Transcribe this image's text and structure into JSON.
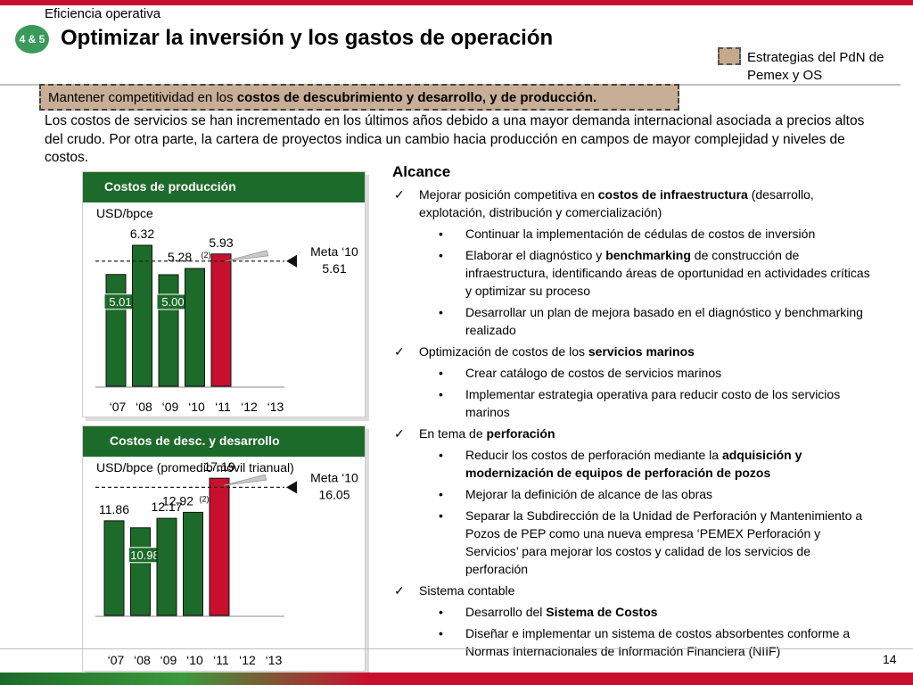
{
  "header": {
    "section": "Eficiencia operativa",
    "badge": "4 & 5",
    "title": "Optimizar la  inversión y los gastos de operación",
    "legend": "Estrategias del PdN de Pemex y OS"
  },
  "banner": {
    "pre": "Mantener competitividad en los ",
    "bold": "costos de descubrimiento y desarrollo, y de producción."
  },
  "intro": "Los costos de servicios se han incrementado en los últimos años debido a una mayor demanda internacional asociada a precios altos del crudo. Por otra parte, la cartera de proyectos indica un cambio hacia producción en campos de mayor complejidad y niveles de costos.",
  "chart_data": [
    {
      "type": "bar",
      "title": "Costos de producción",
      "ylabel": "USD/bpce",
      "categories": [
        "'07",
        "'08",
        "'09",
        "'10",
        "'11",
        "'12",
        "'13"
      ],
      "values": [
        5.01,
        6.32,
        5.0,
        5.28,
        5.93,
        null,
        null
      ],
      "labels": [
        "5.01",
        "6.32",
        "5.00",
        "5.28",
        "5.93"
      ],
      "note": "(2)",
      "highlight_index": 4,
      "target": {
        "label": "Meta ‘10",
        "value": 5.61,
        "value_label": "5.61"
      },
      "colors": {
        "bar": "#1d6b2a",
        "highlight": "#c8102e"
      }
    },
    {
      "type": "bar",
      "title": "Costos de desc. y desarrollo",
      "ylabel": "USD/bpce (promedio móvil trianual)",
      "categories": [
        "'07",
        "'08",
        "'09",
        "'10",
        "'11",
        "'12",
        "'13"
      ],
      "values": [
        11.86,
        10.98,
        12.17,
        12.92,
        17.19,
        null,
        null
      ],
      "labels": [
        "11.86",
        "10.98",
        "12.17",
        "12.92",
        "17.19"
      ],
      "note": "(2)",
      "highlight_index": 4,
      "target": {
        "label": "Meta ‘10",
        "value": 16.05,
        "value_label": "16.05"
      },
      "colors": {
        "bar": "#1d6b2a",
        "highlight": "#c8102e"
      }
    }
  ],
  "scope": {
    "title": "Alcance",
    "items": [
      {
        "type": "check",
        "segs": [
          {
            "t": "Mejorar posición competitiva en ",
            "b": false
          },
          {
            "t": "costos de infraestructura",
            "b": true
          },
          {
            "t": " (desarrollo, explotación, distribución y comercialización)",
            "b": false
          }
        ]
      },
      {
        "type": "bullet",
        "segs": [
          {
            "t": "Continuar la implementación de cédulas de costos de inversión",
            "b": false
          }
        ]
      },
      {
        "type": "bullet",
        "segs": [
          {
            "t": "Elaborar el diagnóstico y ",
            "b": false
          },
          {
            "t": "benchmarking",
            "b": true
          },
          {
            "t": " de construcción de infraestructura, identificando áreas de oportunidad en actividades críticas y optimizar su proceso",
            "b": false
          }
        ]
      },
      {
        "type": "bullet",
        "segs": [
          {
            "t": "Desarrollar un plan de mejora basado en el diagnóstico y benchmarking realizado",
            "b": false
          }
        ]
      },
      {
        "type": "check",
        "segs": [
          {
            "t": "Optimización de costos de los ",
            "b": false
          },
          {
            "t": "servicios marinos",
            "b": true
          }
        ]
      },
      {
        "type": "bullet",
        "segs": [
          {
            "t": "Crear catálogo de costos de servicios marinos",
            "b": false
          }
        ]
      },
      {
        "type": "bullet",
        "segs": [
          {
            "t": "Implementar estrategia operativa para reducir costo de los servicios marinos",
            "b": false
          }
        ]
      },
      {
        "type": "check",
        "segs": [
          {
            "t": "En tema de ",
            "b": false
          },
          {
            "t": "perforación",
            "b": true
          }
        ]
      },
      {
        "type": "bullet",
        "segs": [
          {
            "t": "Reducir los costos de perforación mediante la ",
            "b": false
          },
          {
            "t": "adquisición y modernización de equipos de perforación de pozos",
            "b": true
          }
        ]
      },
      {
        "type": "bullet",
        "segs": [
          {
            "t": "Mejorar la definición de alcance de las obras",
            "b": false
          }
        ]
      },
      {
        "type": "bullet",
        "segs": [
          {
            "t": "Separar la Subdirección de la Unidad de Perforación y Mantenimiento a Pozos de PEP como una nueva empresa ‘PEMEX Perforación y Servicios’ para mejorar los costos y calidad de los servicios de perforación",
            "b": false
          }
        ]
      },
      {
        "type": "check",
        "segs": [
          {
            "t": "Sistema contable",
            "b": false
          }
        ]
      },
      {
        "type": "bullet",
        "segs": [
          {
            "t": "Desarrollo del ",
            "b": false
          },
          {
            "t": "Sistema de Costos",
            "b": true
          }
        ]
      },
      {
        "type": "bullet",
        "segs": [
          {
            "t": "Diseñar e implementar un sistema de costos absorbentes conforme a Normas Internacionales de Información Financiera (NIIF)",
            "b": false
          }
        ]
      }
    ]
  },
  "footer": {
    "page": "14"
  }
}
